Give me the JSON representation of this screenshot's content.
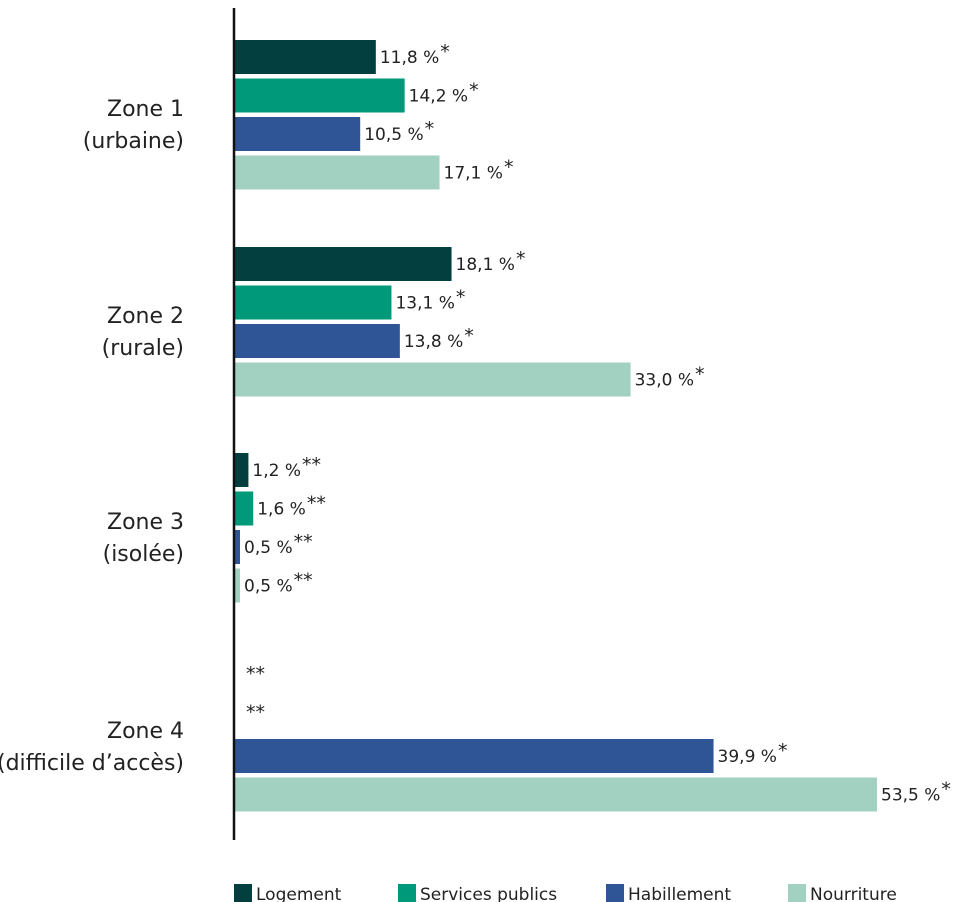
{
  "chart_data": {
    "type": "bar",
    "orientation": "horizontal",
    "categories": [
      [
        "Zone 1",
        "(urbaine)"
      ],
      [
        "Zone 2",
        "(rurale)"
      ],
      [
        "Zone 3",
        "(isolée)"
      ],
      [
        "Zone 4",
        "(difficile d’accès)"
      ]
    ],
    "series": [
      {
        "name": "Logement",
        "color": "#033f3f",
        "values": [
          11.8,
          18.1,
          1.2,
          null
        ],
        "labels": [
          "11,8 %",
          "18,1 %",
          "1,2 %",
          ""
        ],
        "marks": [
          "*",
          "*",
          "**",
          "**"
        ]
      },
      {
        "name": "Services publics",
        "color": "#00997a",
        "values": [
          14.2,
          13.1,
          1.6,
          null
        ],
        "labels": [
          "14,2 %",
          "13,1 %",
          "1,6 %",
          ""
        ],
        "marks": [
          "*",
          "*",
          "**",
          "**"
        ]
      },
      {
        "name": "Habillement",
        "color": "#2f5597",
        "values": [
          10.5,
          13.8,
          0.5,
          39.9
        ],
        "labels": [
          "10,5 %",
          "13,8 %",
          "0,5 %",
          "39,9 %"
        ],
        "marks": [
          "*",
          "*",
          "**",
          "*"
        ]
      },
      {
        "name": "Nourriture",
        "color": "#a2d1c2",
        "values": [
          17.1,
          33.0,
          0.5,
          53.5
        ],
        "labels": [
          "17,1 %",
          "33,0 %",
          "0,5 %",
          "53,5 %"
        ],
        "marks": [
          "*",
          "*",
          "**",
          "*"
        ]
      }
    ],
    "xlim": [
      0,
      53.5
    ],
    "axis_grid": false,
    "legend_position": "bottom"
  }
}
